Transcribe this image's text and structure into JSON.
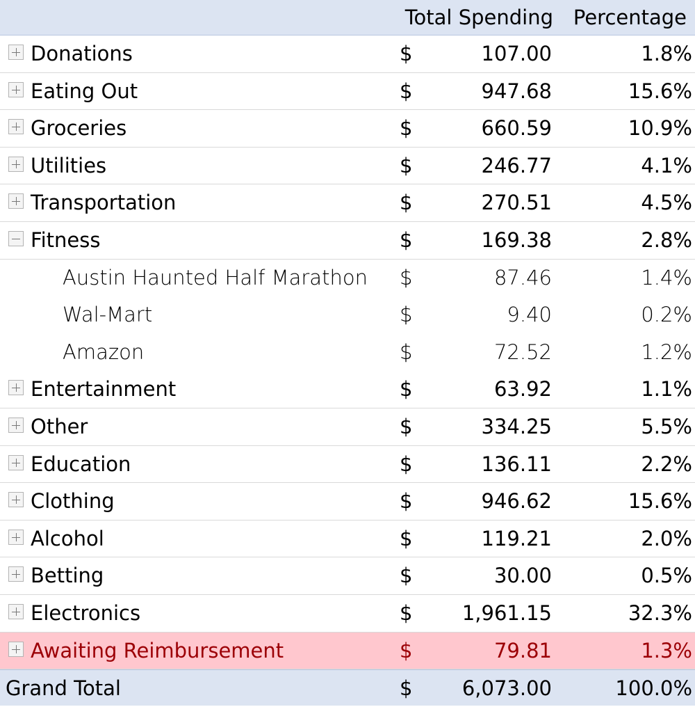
{
  "header": {
    "total_spending": "Total Spending",
    "percentage": "Percentage"
  },
  "rows": [
    {
      "label": "Donations",
      "dollar": "$",
      "amount": "107.00",
      "percent": "1.8%",
      "toggle": "plus"
    },
    {
      "label": "Eating Out",
      "dollar": "$",
      "amount": "947.68",
      "percent": "15.6%",
      "toggle": "plus"
    },
    {
      "label": "Groceries",
      "dollar": "$",
      "amount": "660.59",
      "percent": "10.9%",
      "toggle": "plus"
    },
    {
      "label": "Utilities",
      "dollar": "$",
      "amount": "246.77",
      "percent": "4.1%",
      "toggle": "plus"
    },
    {
      "label": "Transportation",
      "dollar": "$",
      "amount": "270.51",
      "percent": "4.5%",
      "toggle": "plus"
    },
    {
      "label": "Fitness",
      "dollar": "$",
      "amount": "169.38",
      "percent": "2.8%",
      "toggle": "minus"
    },
    {
      "label": "Austin Haunted Half Marathon",
      "dollar": "$",
      "amount": "87.46",
      "percent": "1.4%",
      "child": true
    },
    {
      "label": "Wal-Mart",
      "dollar": "$",
      "amount": "9.40",
      "percent": "0.2%",
      "child": true
    },
    {
      "label": "Amazon",
      "dollar": "$",
      "amount": "72.52",
      "percent": "1.2%",
      "child": true
    },
    {
      "label": "Entertainment",
      "dollar": "$",
      "amount": "63.92",
      "percent": "1.1%",
      "toggle": "plus"
    },
    {
      "label": "Other",
      "dollar": "$",
      "amount": "334.25",
      "percent": "5.5%",
      "toggle": "plus"
    },
    {
      "label": "Education",
      "dollar": "$",
      "amount": "136.11",
      "percent": "2.2%",
      "toggle": "plus"
    },
    {
      "label": "Clothing",
      "dollar": "$",
      "amount": "946.62",
      "percent": "15.6%",
      "toggle": "plus"
    },
    {
      "label": "Alcohol",
      "dollar": "$",
      "amount": "119.21",
      "percent": "2.0%",
      "toggle": "plus"
    },
    {
      "label": "Betting",
      "dollar": "$",
      "amount": "30.00",
      "percent": "0.5%",
      "toggle": "plus"
    },
    {
      "label": "Electronics",
      "dollar": "$",
      "amount": "1,961.15",
      "percent": "32.3%",
      "toggle": "plus"
    },
    {
      "label": "Awaiting Reimbursement",
      "dollar": "$",
      "amount": "79.81",
      "percent": "1.3%",
      "toggle": "plus",
      "highlight": true
    }
  ],
  "grand_total": {
    "label": "Grand Total",
    "dollar": "$",
    "amount": "6,073.00",
    "percent": "100.0%"
  },
  "colors": {
    "header_bg": "#dce4f2",
    "highlight_bg": "#ffc7ce",
    "highlight_text": "#9c0006"
  }
}
